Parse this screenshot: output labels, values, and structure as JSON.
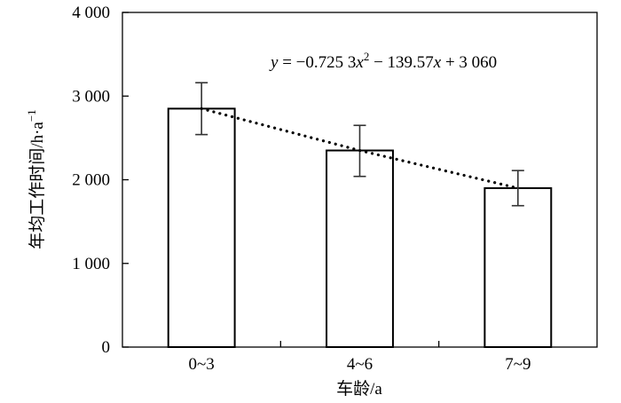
{
  "chart_data": {
    "type": "bar",
    "categories": [
      "0~3",
      "4~6",
      "7~9"
    ],
    "series": [
      {
        "values": [
          2850,
          2350,
          1900
        ],
        "error_low": [
          2540,
          2040,
          1690
        ],
        "error_high": [
          3160,
          2650,
          2110
        ],
        "color": "#ffffff",
        "border_color": "#000000"
      }
    ],
    "trendline": {
      "style": "dotted",
      "equation_parts": {
        "y": "y",
        "eq_part1": " = −0.725 3",
        "x1": "x",
        "exp": "2",
        "eq_part2": " − 139.57",
        "x2": "x",
        "eq_part3": " + 3 060"
      },
      "coefficients": {
        "a": -0.7253,
        "b": -139.57,
        "c": 3060
      }
    },
    "yticks": [
      "0",
      "1 000",
      "2 000",
      "3 000",
      "4 000"
    ],
    "ytick_values": [
      0,
      1000,
      2000,
      3000,
      4000
    ],
    "xlabel": "车龄/a",
    "ylabel_main": "年均工作时间/h·a",
    "ylabel_sup": "−1",
    "ylim": [
      0,
      4000
    ],
    "grid": false,
    "legend": "none"
  }
}
